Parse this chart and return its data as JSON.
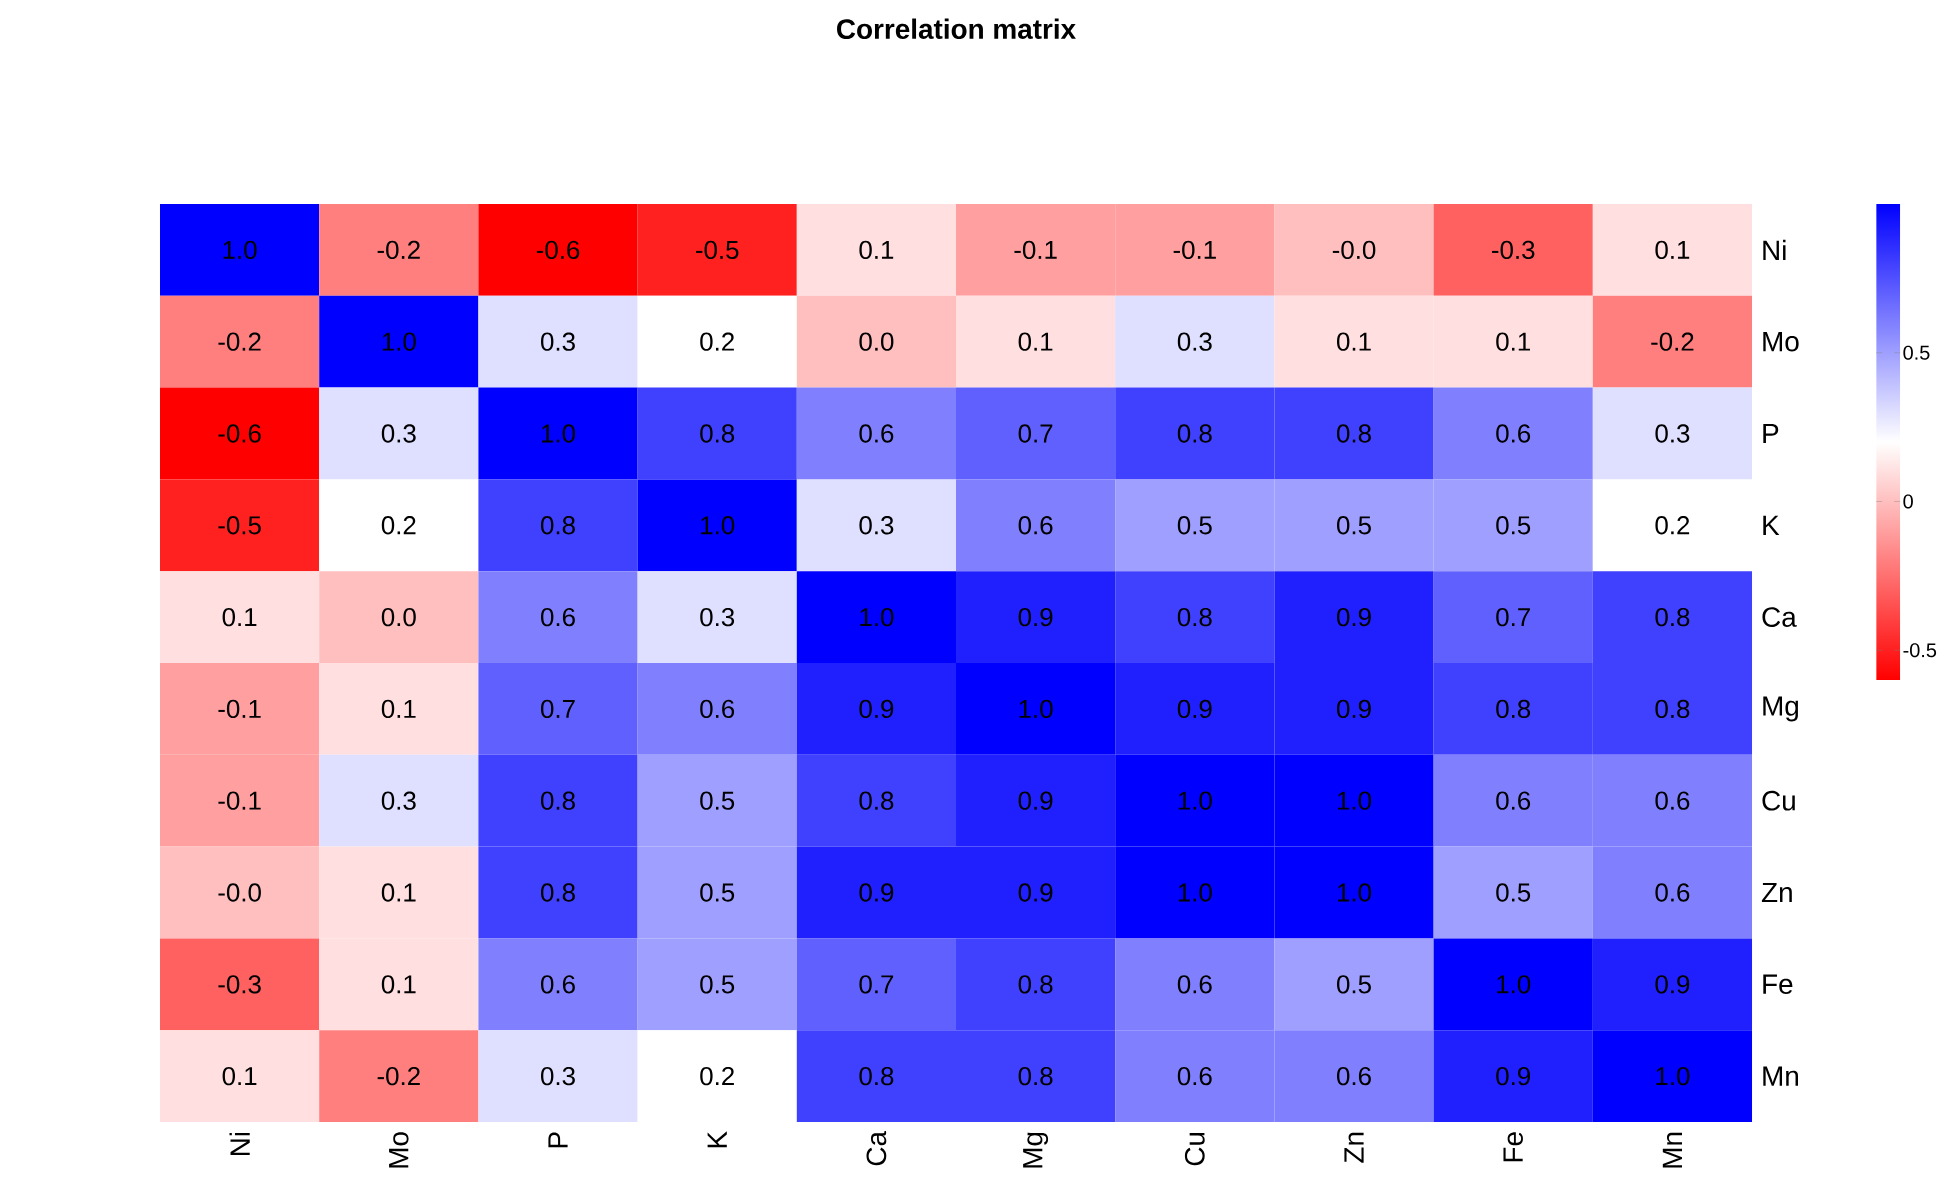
{
  "chart_data": {
    "type": "heatmap",
    "title": "Correlation matrix",
    "categories": [
      "Ni",
      "Mo",
      "P",
      "K",
      "Ca",
      "Mg",
      "Cu",
      "Zn",
      "Fe",
      "Mn"
    ],
    "y_categories": [
      "Ni",
      "Mo",
      "P",
      "K",
      "Ca",
      "Mg",
      "Cu",
      "Zn",
      "Fe",
      "Mn"
    ],
    "cells": [
      [
        1.0,
        -0.2,
        -0.6,
        -0.5,
        0.1,
        -0.1,
        -0.1,
        -0.0,
        -0.3,
        0.1
      ],
      [
        -0.2,
        1.0,
        0.3,
        0.2,
        0.0,
        0.1,
        0.3,
        0.1,
        0.1,
        -0.2
      ],
      [
        -0.6,
        0.3,
        1.0,
        0.8,
        0.6,
        0.7,
        0.8,
        0.8,
        0.6,
        0.3
      ],
      [
        -0.5,
        0.2,
        0.8,
        1.0,
        0.3,
        0.6,
        0.5,
        0.5,
        0.5,
        0.2
      ],
      [
        0.1,
        0.0,
        0.6,
        0.3,
        1.0,
        0.9,
        0.8,
        0.9,
        0.7,
        0.8
      ],
      [
        -0.1,
        0.1,
        0.7,
        0.6,
        0.9,
        1.0,
        0.9,
        0.9,
        0.8,
        0.8
      ],
      [
        -0.1,
        0.3,
        0.8,
        0.5,
        0.8,
        0.9,
        1.0,
        1.0,
        0.6,
        0.6
      ],
      [
        -0.0,
        0.1,
        0.8,
        0.5,
        0.9,
        0.9,
        1.0,
        1.0,
        0.5,
        0.6
      ],
      [
        -0.3,
        0.1,
        0.6,
        0.5,
        0.7,
        0.8,
        0.6,
        0.5,
        1.0,
        0.9
      ],
      [
        0.1,
        -0.2,
        0.3,
        0.2,
        0.8,
        0.8,
        0.6,
        0.6,
        0.9,
        1.0
      ]
    ],
    "cell_labels": [
      [
        "1.0",
        "-0.2",
        "-0.6",
        "-0.5",
        "0.1",
        "-0.1",
        "-0.1",
        "-0.0",
        "-0.3",
        "0.1"
      ],
      [
        "-0.2",
        "1.0",
        "0.3",
        "0.2",
        "0.0",
        "0.1",
        "0.3",
        "0.1",
        "0.1",
        "-0.2"
      ],
      [
        "-0.6",
        "0.3",
        "1.0",
        "0.8",
        "0.6",
        "0.7",
        "0.8",
        "0.8",
        "0.6",
        "0.3"
      ],
      [
        "-0.5",
        "0.2",
        "0.8",
        "1.0",
        "0.3",
        "0.6",
        "0.5",
        "0.5",
        "0.5",
        "0.2"
      ],
      [
        "0.1",
        "0.0",
        "0.6",
        "0.3",
        "1.0",
        "0.9",
        "0.8",
        "0.9",
        "0.7",
        "0.8"
      ],
      [
        "-0.1",
        "0.1",
        "0.7",
        "0.6",
        "0.9",
        "1.0",
        "0.9",
        "0.9",
        "0.8",
        "0.8"
      ],
      [
        "-0.1",
        "0.3",
        "0.8",
        "0.5",
        "0.8",
        "0.9",
        "1.0",
        "1.0",
        "0.6",
        "0.6"
      ],
      [
        "-0.0",
        "0.1",
        "0.8",
        "0.5",
        "0.9",
        "0.9",
        "1.0",
        "1.0",
        "0.5",
        "0.6"
      ],
      [
        "-0.3",
        "0.1",
        "0.6",
        "0.5",
        "0.7",
        "0.8",
        "0.6",
        "0.5",
        "1.0",
        "0.9"
      ],
      [
        "0.1",
        "-0.2",
        "0.3",
        "0.2",
        "0.8",
        "0.8",
        "0.6",
        "0.6",
        "0.9",
        "1.0"
      ]
    ],
    "clim": [
      -0.6,
      1.0
    ],
    "cticks": [
      -0.5,
      0,
      0.5
    ]
  }
}
